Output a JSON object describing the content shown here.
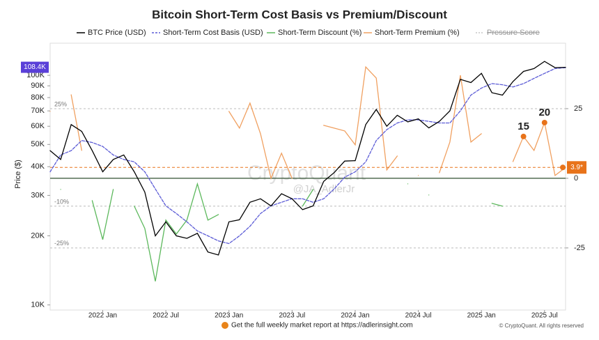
{
  "chart_data": {
    "type": "line",
    "title": "Bitcoin Short-Term Cost Basis vs Premium/Discount",
    "y_label": "Price ($)",
    "log_y": true,
    "x": [
      "2021-08",
      "2021-09",
      "2021-10",
      "2021-11",
      "2021-12",
      "2022-01",
      "2022-02",
      "2022-03",
      "2022-04",
      "2022-05",
      "2022-06",
      "2022-07",
      "2022-08",
      "2022-09",
      "2022-10",
      "2022-11",
      "2022-12",
      "2023-01",
      "2023-02",
      "2023-03",
      "2023-04",
      "2023-05",
      "2023-06",
      "2023-07",
      "2023-08",
      "2023-09",
      "2023-10",
      "2023-11",
      "2023-12",
      "2024-01",
      "2024-02",
      "2024-03",
      "2024-04",
      "2024-05",
      "2024-06",
      "2024-07",
      "2024-08",
      "2024-09",
      "2024-10",
      "2024-11",
      "2024-12",
      "2025-01",
      "2025-02",
      "2025-03",
      "2025-04",
      "2025-05",
      "2025-06",
      "2025-07",
      "2025-08",
      "2025-09"
    ],
    "xlim": [
      "2021-08",
      "2025-09"
    ],
    "xticks": [
      {
        "value": "2022-01",
        "label": "2022 Jan"
      },
      {
        "value": "2022-07",
        "label": "2022 Jul"
      },
      {
        "value": "2023-01",
        "label": "2023 Jan"
      },
      {
        "value": "2023-07",
        "label": "2023 Jul"
      },
      {
        "value": "2024-01",
        "label": "2024 Jan"
      },
      {
        "value": "2024-07",
        "label": "2024 Jul"
      },
      {
        "value": "2025-01",
        "label": "2025 Jan"
      },
      {
        "value": "2025-07",
        "label": "2025 Jul"
      }
    ],
    "ylim": [
      9500,
      138000
    ],
    "yticks": [
      {
        "value": 10000,
        "label": "10K"
      },
      {
        "value": 20000,
        "label": "20K"
      },
      {
        "value": 30000,
        "label": "30K"
      },
      {
        "value": 40000,
        "label": "40K"
      },
      {
        "value": 50000,
        "label": "50K"
      },
      {
        "value": 60000,
        "label": "60K"
      },
      {
        "value": 70000,
        "label": "70K"
      },
      {
        "value": 80000,
        "label": "80K"
      },
      {
        "value": 90000,
        "label": "90K"
      },
      {
        "value": 100000,
        "label": "100K"
      }
    ],
    "y2lim": [
      -47.3,
      48.5
    ],
    "y2ticks": [
      -25,
      0,
      25
    ],
    "ref_lines": [
      {
        "value": 25,
        "label": "25%"
      },
      {
        "value": -10,
        "label": "-10%"
      },
      {
        "value": -25,
        "label": "-25%"
      }
    ],
    "series": [
      {
        "name": "BTC Price (USD)",
        "color": "#000000",
        "style": "solid",
        "values": [
          47000,
          43000,
          61000,
          57000,
          47000,
          38000,
          43000,
          45000,
          38000,
          31000,
          20000,
          23000,
          20000,
          19500,
          20500,
          17000,
          16500,
          23000,
          23500,
          28000,
          29000,
          27000,
          30500,
          29000,
          26000,
          27000,
          34500,
          37700,
          42300,
          42500,
          61000,
          71000,
          60000,
          67000,
          62700,
          64600,
          59000,
          63000,
          70000,
          96000,
          93000,
          102000,
          84000,
          82000,
          94000,
          104000,
          107000,
          115000,
          108000,
          108400
        ],
        "value_labels": [
          null,
          null,
          null,
          null,
          null,
          null,
          null,
          null,
          null,
          null,
          null,
          null,
          null,
          null,
          null,
          null,
          null,
          null,
          null,
          null,
          null,
          null,
          null,
          null,
          null,
          null,
          null,
          null,
          null,
          null,
          null,
          null,
          null,
          null,
          null,
          null,
          null,
          null,
          null,
          null,
          null,
          null,
          null,
          null,
          null,
          null,
          null,
          null,
          null,
          "108.4K"
        ],
        "label_color": "#5a3fd8"
      },
      {
        "name": "Short-Term Cost Basis (USD)",
        "color": "#5b5bd6",
        "style": "dashed",
        "values": [
          38000,
          45000,
          47000,
          52000,
          51000,
          49000,
          45000,
          43000,
          42000,
          38000,
          32000,
          27000,
          25000,
          23000,
          21000,
          20000,
          19000,
          18500,
          20000,
          22000,
          25000,
          27000,
          28000,
          29000,
          29000,
          28000,
          29000,
          32000,
          36000,
          38000,
          42000,
          52000,
          58000,
          62000,
          64000,
          64000,
          63000,
          62000,
          62000,
          70000,
          82000,
          88000,
          92000,
          91000,
          89000,
          92000,
          97000,
          102000,
          107000,
          108000
        ]
      },
      {
        "name": "Short-Term Discount (%)",
        "color": "#5cb85c",
        "style": "solid",
        "axis": "y2",
        "values": [
          null,
          -4,
          null,
          null,
          -8,
          -22,
          -4,
          null,
          -10,
          -18,
          -37,
          -15,
          -20,
          -15,
          -2,
          -15,
          -13,
          null,
          null,
          null,
          null,
          null,
          null,
          null,
          -10,
          -4,
          null,
          null,
          null,
          null,
          null,
          null,
          null,
          null,
          -2,
          null,
          -6,
          null,
          null,
          null,
          null,
          null,
          -9,
          -10,
          null,
          null,
          null,
          null,
          null,
          null
        ]
      },
      {
        "name": "Short-Term Premium (%)",
        "color": "#f0a060",
        "style": "solid",
        "axis": "y2",
        "values": [
          24,
          null,
          30,
          10,
          null,
          null,
          null,
          5,
          null,
          null,
          null,
          null,
          null,
          null,
          null,
          null,
          null,
          24,
          18,
          27,
          16,
          0,
          9,
          0,
          null,
          null,
          19,
          18,
          17,
          12,
          40,
          36,
          3,
          8,
          null,
          1,
          null,
          2,
          13,
          37,
          13,
          16,
          null,
          null,
          6,
          15,
          10,
          20,
          1,
          3.9
        ],
        "value_labels": [
          null,
          null,
          null,
          null,
          null,
          null,
          null,
          null,
          null,
          null,
          null,
          null,
          null,
          null,
          null,
          null,
          null,
          null,
          null,
          null,
          null,
          null,
          null,
          null,
          null,
          null,
          null,
          null,
          null,
          null,
          null,
          null,
          null,
          null,
          null,
          null,
          null,
          null,
          null,
          null,
          null,
          null,
          null,
          null,
          null,
          "15",
          null,
          "20",
          null,
          "3.9*"
        ],
        "label_color": "#e8731a"
      }
    ],
    "hidden_series": [
      {
        "name": "Pressure Score",
        "color": "#aaaaaa"
      }
    ],
    "watermark": [
      "CryptoQuant",
      "@JA_AdlerJr"
    ],
    "footer": "Get the full weekly market report at https://adlerinsight.com",
    "copyright": "© CryptoQuant. All rights reserved"
  }
}
